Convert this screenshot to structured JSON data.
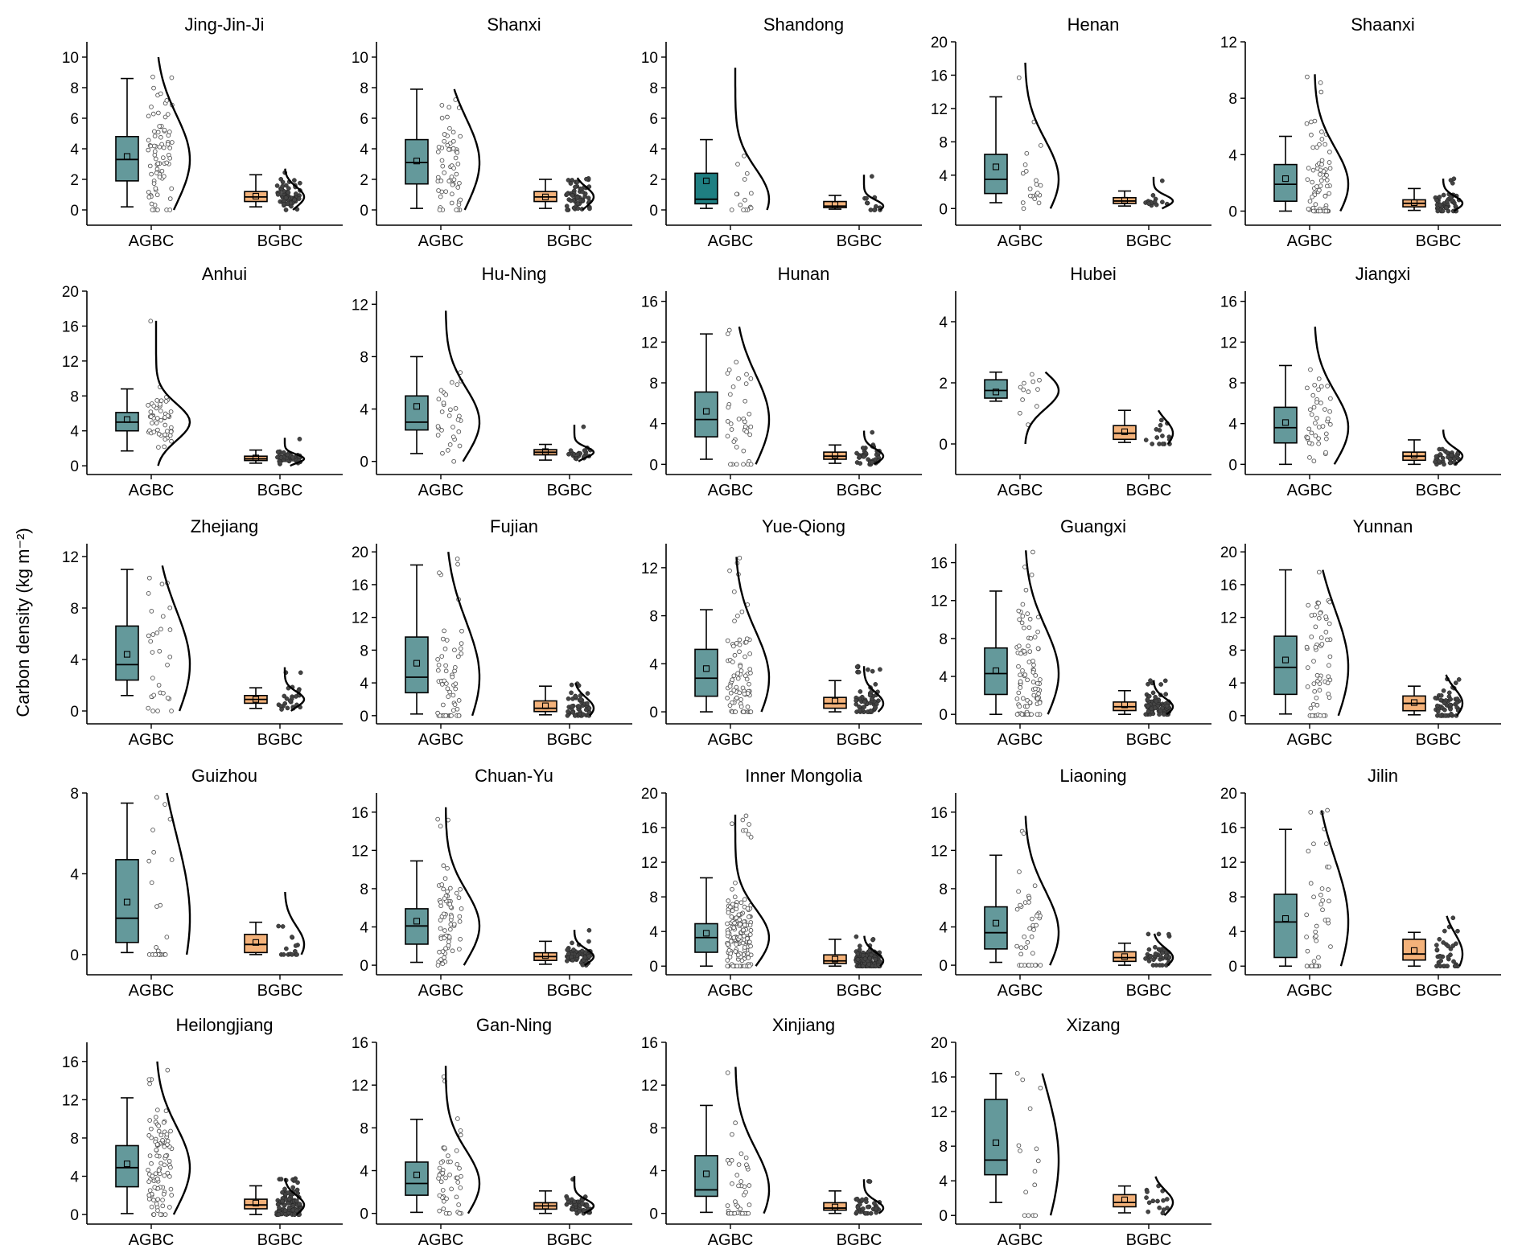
{
  "chart_data": {
    "type": "box",
    "ylabel": "Carbon density (kg m⁻²)",
    "categories": [
      "AGBC",
      "BGBC"
    ],
    "colors": {
      "AGBC": "#64999b",
      "AGBC_alt": "#1f7f82",
      "BGBC": "#f4b27a"
    },
    "panels": [
      {
        "name": "Jing-Jin-Ji",
        "ylim": [
          -1,
          11
        ],
        "ticks": [
          0,
          2,
          4,
          6,
          8,
          10
        ],
        "AGBC": {
          "whisker_low": 0.2,
          "q1": 1.9,
          "median": 3.3,
          "q3": 4.8,
          "whisker_high": 8.6,
          "mean": 3.5,
          "max": 10.0,
          "n": 80
        },
        "BGBC": {
          "whisker_low": 0.2,
          "q1": 0.55,
          "median": 0.85,
          "q3": 1.2,
          "whisker_high": 2.3,
          "mean": 0.9,
          "max": 2.7,
          "n": 60
        }
      },
      {
        "name": "Shanxi",
        "ylim": [
          -1,
          11
        ],
        "ticks": [
          0,
          2,
          4,
          6,
          8,
          10
        ],
        "AGBC": {
          "whisker_low": 0.1,
          "q1": 1.7,
          "median": 3.1,
          "q3": 4.6,
          "whisker_high": 7.9,
          "mean": 3.2,
          "max": 7.9,
          "n": 60
        },
        "BGBC": {
          "whisker_low": 0.1,
          "q1": 0.55,
          "median": 0.85,
          "q3": 1.2,
          "whisker_high": 2.0,
          "mean": 0.85,
          "max": 2.1,
          "n": 60
        }
      },
      {
        "name": "Shandong",
        "ylim": [
          -1,
          11
        ],
        "ticks": [
          0,
          2,
          4,
          6,
          8,
          10
        ],
        "AGBC": {
          "whisker_low": 0.1,
          "q1": 0.4,
          "median": 0.7,
          "q3": 2.4,
          "whisker_high": 4.6,
          "mean": 1.9,
          "max": 9.3,
          "n": 15
        },
        "BGBC": {
          "whisker_low": 0.05,
          "q1": 0.15,
          "median": 0.25,
          "q3": 0.55,
          "whisker_high": 0.95,
          "mean": 0.35,
          "max": 2.3,
          "n": 12
        }
      },
      {
        "name": "Henan",
        "ylim": [
          -2,
          20
        ],
        "ticks": [
          0,
          4,
          8,
          12,
          16,
          20
        ],
        "AGBC": {
          "whisker_low": 0.7,
          "q1": 1.8,
          "median": 3.5,
          "q3": 6.5,
          "whisker_high": 13.4,
          "mean": 5.0,
          "max": 17.5,
          "n": 20
        },
        "BGBC": {
          "whisker_low": 0.3,
          "q1": 0.6,
          "median": 0.9,
          "q3": 1.3,
          "whisker_high": 2.1,
          "mean": 1.0,
          "max": 3.8,
          "n": 15
        }
      },
      {
        "name": "Shaanxi",
        "ylim": [
          -1,
          12
        ],
        "ticks": [
          0,
          4,
          8,
          12
        ],
        "AGBC": {
          "whisker_low": 0.0,
          "q1": 0.7,
          "median": 1.9,
          "q3": 3.3,
          "whisker_high": 5.3,
          "mean": 2.3,
          "max": 9.7,
          "n": 70
        },
        "BGBC": {
          "whisker_low": 0.05,
          "q1": 0.3,
          "median": 0.55,
          "q3": 0.8,
          "whisker_high": 1.6,
          "mean": 0.6,
          "max": 2.3,
          "n": 50
        }
      },
      {
        "name": "Anhui",
        "ylim": [
          -1,
          20
        ],
        "ticks": [
          0,
          4,
          8,
          12,
          16,
          20
        ],
        "AGBC": {
          "whisker_low": 1.7,
          "q1": 4.0,
          "median": 5.0,
          "q3": 6.1,
          "whisker_high": 8.8,
          "mean": 5.3,
          "max": 16.6,
          "n": 50
        },
        "BGBC": {
          "whisker_low": 0.3,
          "q1": 0.6,
          "median": 0.8,
          "q3": 1.1,
          "whisker_high": 1.8,
          "mean": 0.9,
          "max": 3.2,
          "n": 50
        }
      },
      {
        "name": "Hu-Ning",
        "ylim": [
          -1,
          13
        ],
        "ticks": [
          0,
          4,
          8,
          12
        ],
        "AGBC": {
          "whisker_low": 0.6,
          "q1": 2.4,
          "median": 3.0,
          "q3": 5.0,
          "whisker_high": 8.0,
          "mean": 4.2,
          "max": 11.5,
          "n": 30
        },
        "BGBC": {
          "whisker_low": 0.1,
          "q1": 0.5,
          "median": 0.7,
          "q3": 0.9,
          "whisker_high": 1.3,
          "mean": 0.75,
          "max": 2.8,
          "n": 20
        }
      },
      {
        "name": "Hunan",
        "ylim": [
          -1,
          17
        ],
        "ticks": [
          0,
          4,
          8,
          12,
          16
        ],
        "AGBC": {
          "whisker_low": 0.5,
          "q1": 2.7,
          "median": 4.4,
          "q3": 7.1,
          "whisker_high": 12.8,
          "mean": 5.2,
          "max": 13.5,
          "n": 40
        },
        "BGBC": {
          "whisker_low": 0.1,
          "q1": 0.5,
          "median": 0.8,
          "q3": 1.2,
          "whisker_high": 1.9,
          "mean": 0.9,
          "max": 3.3,
          "n": 40
        }
      },
      {
        "name": "Hubei",
        "ylim": [
          -1,
          5
        ],
        "ticks": [
          0,
          2,
          4
        ],
        "AGBC": {
          "whisker_low": 1.4,
          "q1": 1.5,
          "median": 1.75,
          "q3": 2.1,
          "whisker_high": 2.35,
          "mean": 1.7,
          "max": 2.35,
          "n": 12
        },
        "BGBC": {
          "whisker_low": 0.05,
          "q1": 0.15,
          "median": 0.35,
          "q3": 0.6,
          "whisker_high": 1.1,
          "mean": 0.4,
          "max": 1.1,
          "n": 15
        }
      },
      {
        "name": "Jiangxi",
        "ylim": [
          -1,
          17
        ],
        "ticks": [
          0,
          4,
          8,
          12,
          16
        ],
        "AGBC": {
          "whisker_low": 0.0,
          "q1": 2.1,
          "median": 3.6,
          "q3": 5.6,
          "whisker_high": 9.7,
          "mean": 4.1,
          "max": 13.5,
          "n": 40
        },
        "BGBC": {
          "whisker_low": 0.0,
          "q1": 0.4,
          "median": 0.8,
          "q3": 1.2,
          "whisker_high": 2.4,
          "mean": 0.9,
          "max": 3.4,
          "n": 35
        }
      },
      {
        "name": "Zhejiang",
        "ylim": [
          -1,
          13
        ],
        "ticks": [
          0,
          4,
          8,
          12
        ],
        "AGBC": {
          "whisker_low": 1.2,
          "q1": 2.4,
          "median": 3.6,
          "q3": 6.6,
          "whisker_high": 11.0,
          "mean": 4.4,
          "max": 11.3,
          "n": 30
        },
        "BGBC": {
          "whisker_low": 0.2,
          "q1": 0.6,
          "median": 0.9,
          "q3": 1.2,
          "whisker_high": 1.8,
          "mean": 0.9,
          "max": 3.4,
          "n": 25
        }
      },
      {
        "name": "Fujian",
        "ylim": [
          -1,
          21
        ],
        "ticks": [
          0,
          4,
          8,
          12,
          16,
          20
        ],
        "AGBC": {
          "whisker_low": 0.2,
          "q1": 2.8,
          "median": 4.7,
          "q3": 9.6,
          "whisker_high": 18.4,
          "mean": 6.4,
          "max": 20.0,
          "n": 60
        },
        "BGBC": {
          "whisker_low": 0.1,
          "q1": 0.5,
          "median": 0.9,
          "q3": 1.8,
          "whisker_high": 3.6,
          "mean": 1.2,
          "max": 4.0,
          "n": 50
        }
      },
      {
        "name": "Yue-Qiong",
        "ylim": [
          -1,
          14
        ],
        "ticks": [
          0,
          4,
          8,
          12
        ],
        "AGBC": {
          "whisker_low": 0.0,
          "q1": 1.3,
          "median": 2.8,
          "q3": 5.2,
          "whisker_high": 8.5,
          "mean": 3.6,
          "max": 12.9,
          "n": 80
        },
        "BGBC": {
          "whisker_low": 0.0,
          "q1": 0.3,
          "median": 0.7,
          "q3": 1.2,
          "whisker_high": 2.6,
          "mean": 0.9,
          "max": 3.8,
          "n": 60
        }
      },
      {
        "name": "Guangxi",
        "ylim": [
          -1,
          18
        ],
        "ticks": [
          0,
          4,
          8,
          12,
          16
        ],
        "AGBC": {
          "whisker_low": 0.0,
          "q1": 2.1,
          "median": 4.3,
          "q3": 7.0,
          "whisker_high": 13.0,
          "mean": 4.6,
          "max": 17.3,
          "n": 90
        },
        "BGBC": {
          "whisker_low": 0.0,
          "q1": 0.4,
          "median": 0.8,
          "q3": 1.3,
          "whisker_high": 2.5,
          "mean": 1.0,
          "max": 3.6,
          "n": 80
        }
      },
      {
        "name": "Yunnan",
        "ylim": [
          -1,
          21
        ],
        "ticks": [
          0,
          4,
          8,
          12,
          16,
          20
        ],
        "AGBC": {
          "whisker_low": 0.2,
          "q1": 2.6,
          "median": 5.9,
          "q3": 9.7,
          "whisker_high": 17.8,
          "mean": 6.8,
          "max": 17.8,
          "n": 60
        },
        "BGBC": {
          "whisker_low": 0.1,
          "q1": 0.6,
          "median": 1.5,
          "q3": 2.4,
          "whisker_high": 3.6,
          "mean": 1.6,
          "max": 5.0,
          "n": 55
        }
      },
      {
        "name": "Guizhou",
        "ylim": [
          -1,
          8
        ],
        "ticks": [
          0,
          4,
          8
        ],
        "AGBC": {
          "whisker_low": 0.1,
          "q1": 0.6,
          "median": 1.8,
          "q3": 4.7,
          "whisker_high": 7.5,
          "mean": 2.6,
          "max": 8.0,
          "n": 25
        },
        "BGBC": {
          "whisker_low": 0.0,
          "q1": 0.1,
          "median": 0.5,
          "q3": 1.0,
          "whisker_high": 1.6,
          "mean": 0.6,
          "max": 3.1,
          "n": 15
        }
      },
      {
        "name": "Chuan-Yu",
        "ylim": [
          -1,
          18
        ],
        "ticks": [
          0,
          4,
          8,
          12,
          16
        ],
        "AGBC": {
          "whisker_low": 0.3,
          "q1": 2.2,
          "median": 4.1,
          "q3": 5.9,
          "whisker_high": 10.9,
          "mean": 4.6,
          "max": 16.5,
          "n": 70
        },
        "BGBC": {
          "whisker_low": 0.1,
          "q1": 0.5,
          "median": 0.9,
          "q3": 1.3,
          "whisker_high": 2.5,
          "mean": 1.0,
          "max": 3.7,
          "n": 60
        }
      },
      {
        "name": "Inner Mongolia",
        "ylim": [
          -1,
          20
        ],
        "ticks": [
          0,
          4,
          8,
          12,
          16,
          20
        ],
        "AGBC": {
          "whisker_low": 0.0,
          "q1": 1.6,
          "median": 3.3,
          "q3": 4.9,
          "whisker_high": 10.2,
          "mean": 3.8,
          "max": 17.5,
          "n": 160
        },
        "BGBC": {
          "whisker_low": 0.0,
          "q1": 0.3,
          "median": 0.6,
          "q3": 1.3,
          "whisker_high": 3.1,
          "mean": 0.8,
          "max": 3.5,
          "n": 130
        }
      },
      {
        "name": "Liaoning",
        "ylim": [
          -1,
          18
        ],
        "ticks": [
          0,
          4,
          8,
          12,
          16
        ],
        "AGBC": {
          "whisker_low": 0.3,
          "q1": 1.7,
          "median": 3.4,
          "q3": 6.1,
          "whisker_high": 11.5,
          "mean": 4.4,
          "max": 15.6,
          "n": 40
        },
        "BGBC": {
          "whisker_low": 0.0,
          "q1": 0.4,
          "median": 0.8,
          "q3": 1.4,
          "whisker_high": 2.3,
          "mean": 0.9,
          "max": 3.3,
          "n": 40
        }
      },
      {
        "name": "Jilin",
        "ylim": [
          -1,
          20
        ],
        "ticks": [
          0,
          4,
          8,
          12,
          16,
          20
        ],
        "AGBC": {
          "whisker_low": 0.0,
          "q1": 1.0,
          "median": 5.1,
          "q3": 8.3,
          "whisker_high": 15.8,
          "mean": 5.5,
          "max": 18.0,
          "n": 40
        },
        "BGBC": {
          "whisker_low": 0.0,
          "q1": 0.7,
          "median": 1.4,
          "q3": 3.1,
          "whisker_high": 3.9,
          "mean": 1.8,
          "max": 5.8,
          "n": 35
        }
      },
      {
        "name": "Heilongjiang",
        "ylim": [
          -1,
          18
        ],
        "ticks": [
          0,
          4,
          8,
          12,
          16
        ],
        "AGBC": {
          "whisker_low": 0.1,
          "q1": 2.9,
          "median": 4.9,
          "q3": 7.2,
          "whisker_high": 12.2,
          "mean": 5.3,
          "max": 16.0,
          "n": 100
        },
        "BGBC": {
          "whisker_low": 0.0,
          "q1": 0.6,
          "median": 1.0,
          "q3": 1.6,
          "whisker_high": 3.0,
          "mean": 1.2,
          "max": 3.8,
          "n": 100
        }
      },
      {
        "name": "Gan-Ning",
        "ylim": [
          -1,
          16
        ],
        "ticks": [
          0,
          4,
          8,
          12,
          16
        ],
        "AGBC": {
          "whisker_low": 0.1,
          "q1": 1.7,
          "median": 2.8,
          "q3": 4.8,
          "whisker_high": 8.8,
          "mean": 3.6,
          "max": 13.8,
          "n": 50
        },
        "BGBC": {
          "whisker_low": 0.0,
          "q1": 0.4,
          "median": 0.7,
          "q3": 1.0,
          "whisker_high": 2.1,
          "mean": 0.7,
          "max": 3.5,
          "n": 40
        }
      },
      {
        "name": "Xinjiang",
        "ylim": [
          -1,
          16
        ],
        "ticks": [
          0,
          4,
          8,
          12,
          16
        ],
        "AGBC": {
          "whisker_low": 0.1,
          "q1": 1.6,
          "median": 2.2,
          "q3": 5.4,
          "whisker_high": 10.1,
          "mean": 3.7,
          "max": 13.7,
          "n": 40
        },
        "BGBC": {
          "whisker_low": 0.0,
          "q1": 0.3,
          "median": 0.5,
          "q3": 1.0,
          "whisker_high": 2.1,
          "mean": 0.6,
          "max": 3.2,
          "n": 35
        }
      },
      {
        "name": "Xizang",
        "ylim": [
          -1,
          20
        ],
        "ticks": [
          0,
          4,
          8,
          12,
          16,
          20
        ],
        "AGBC": {
          "whisker_low": 1.5,
          "q1": 4.7,
          "median": 6.4,
          "q3": 13.4,
          "whisker_high": 16.4,
          "mean": 8.4,
          "max": 16.4,
          "n": 15
        },
        "BGBC": {
          "whisker_low": 0.3,
          "q1": 1.0,
          "median": 1.5,
          "q3": 2.4,
          "whisker_high": 3.4,
          "mean": 1.8,
          "max": 4.5,
          "n": 15
        }
      }
    ]
  }
}
